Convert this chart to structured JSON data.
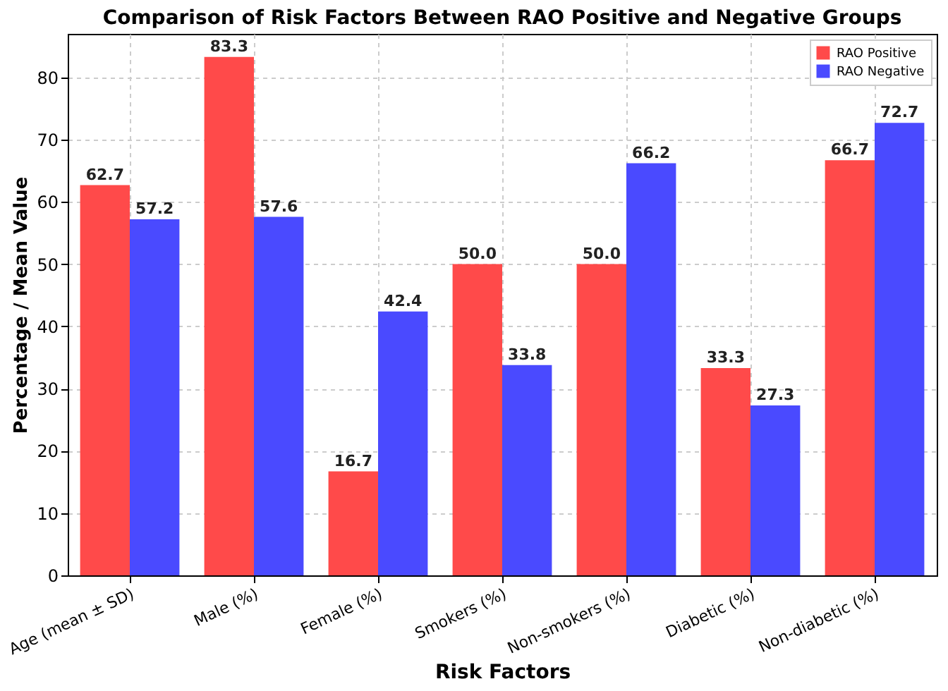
{
  "chart_data": {
    "type": "bar",
    "title": "Comparison of Risk Factors Between RAO Positive and Negative Groups",
    "xlabel": "Risk Factors",
    "ylabel": "Percentage / Mean Value",
    "categories": [
      "Age (mean ± SD)",
      "Male (%)",
      "Female (%)",
      "Smokers (%)",
      "Non-smokers (%)",
      "Diabetic (%)",
      "Non-diabetic (%)"
    ],
    "series": [
      {
        "name": "RAO Positive",
        "color": "#ff4a4a",
        "values": [
          62.7,
          83.3,
          16.7,
          50.0,
          50.0,
          33.3,
          66.7
        ],
        "value_labels": [
          "62.7",
          "83.3",
          "16.7",
          "50.0",
          "50.0",
          "33.3",
          "66.7"
        ]
      },
      {
        "name": "RAO Negative",
        "color": "#4a4aff",
        "values": [
          57.2,
          57.6,
          42.4,
          33.8,
          66.2,
          27.3,
          72.7
        ],
        "value_labels": [
          "57.2",
          "57.6",
          "42.4",
          "33.8",
          "66.2",
          "27.3",
          "72.7"
        ]
      }
    ],
    "ylim": [
      0,
      87
    ],
    "yticks": [
      0,
      10,
      20,
      30,
      40,
      50,
      60,
      70,
      80
    ],
    "grid": true,
    "legend": "top right"
  }
}
